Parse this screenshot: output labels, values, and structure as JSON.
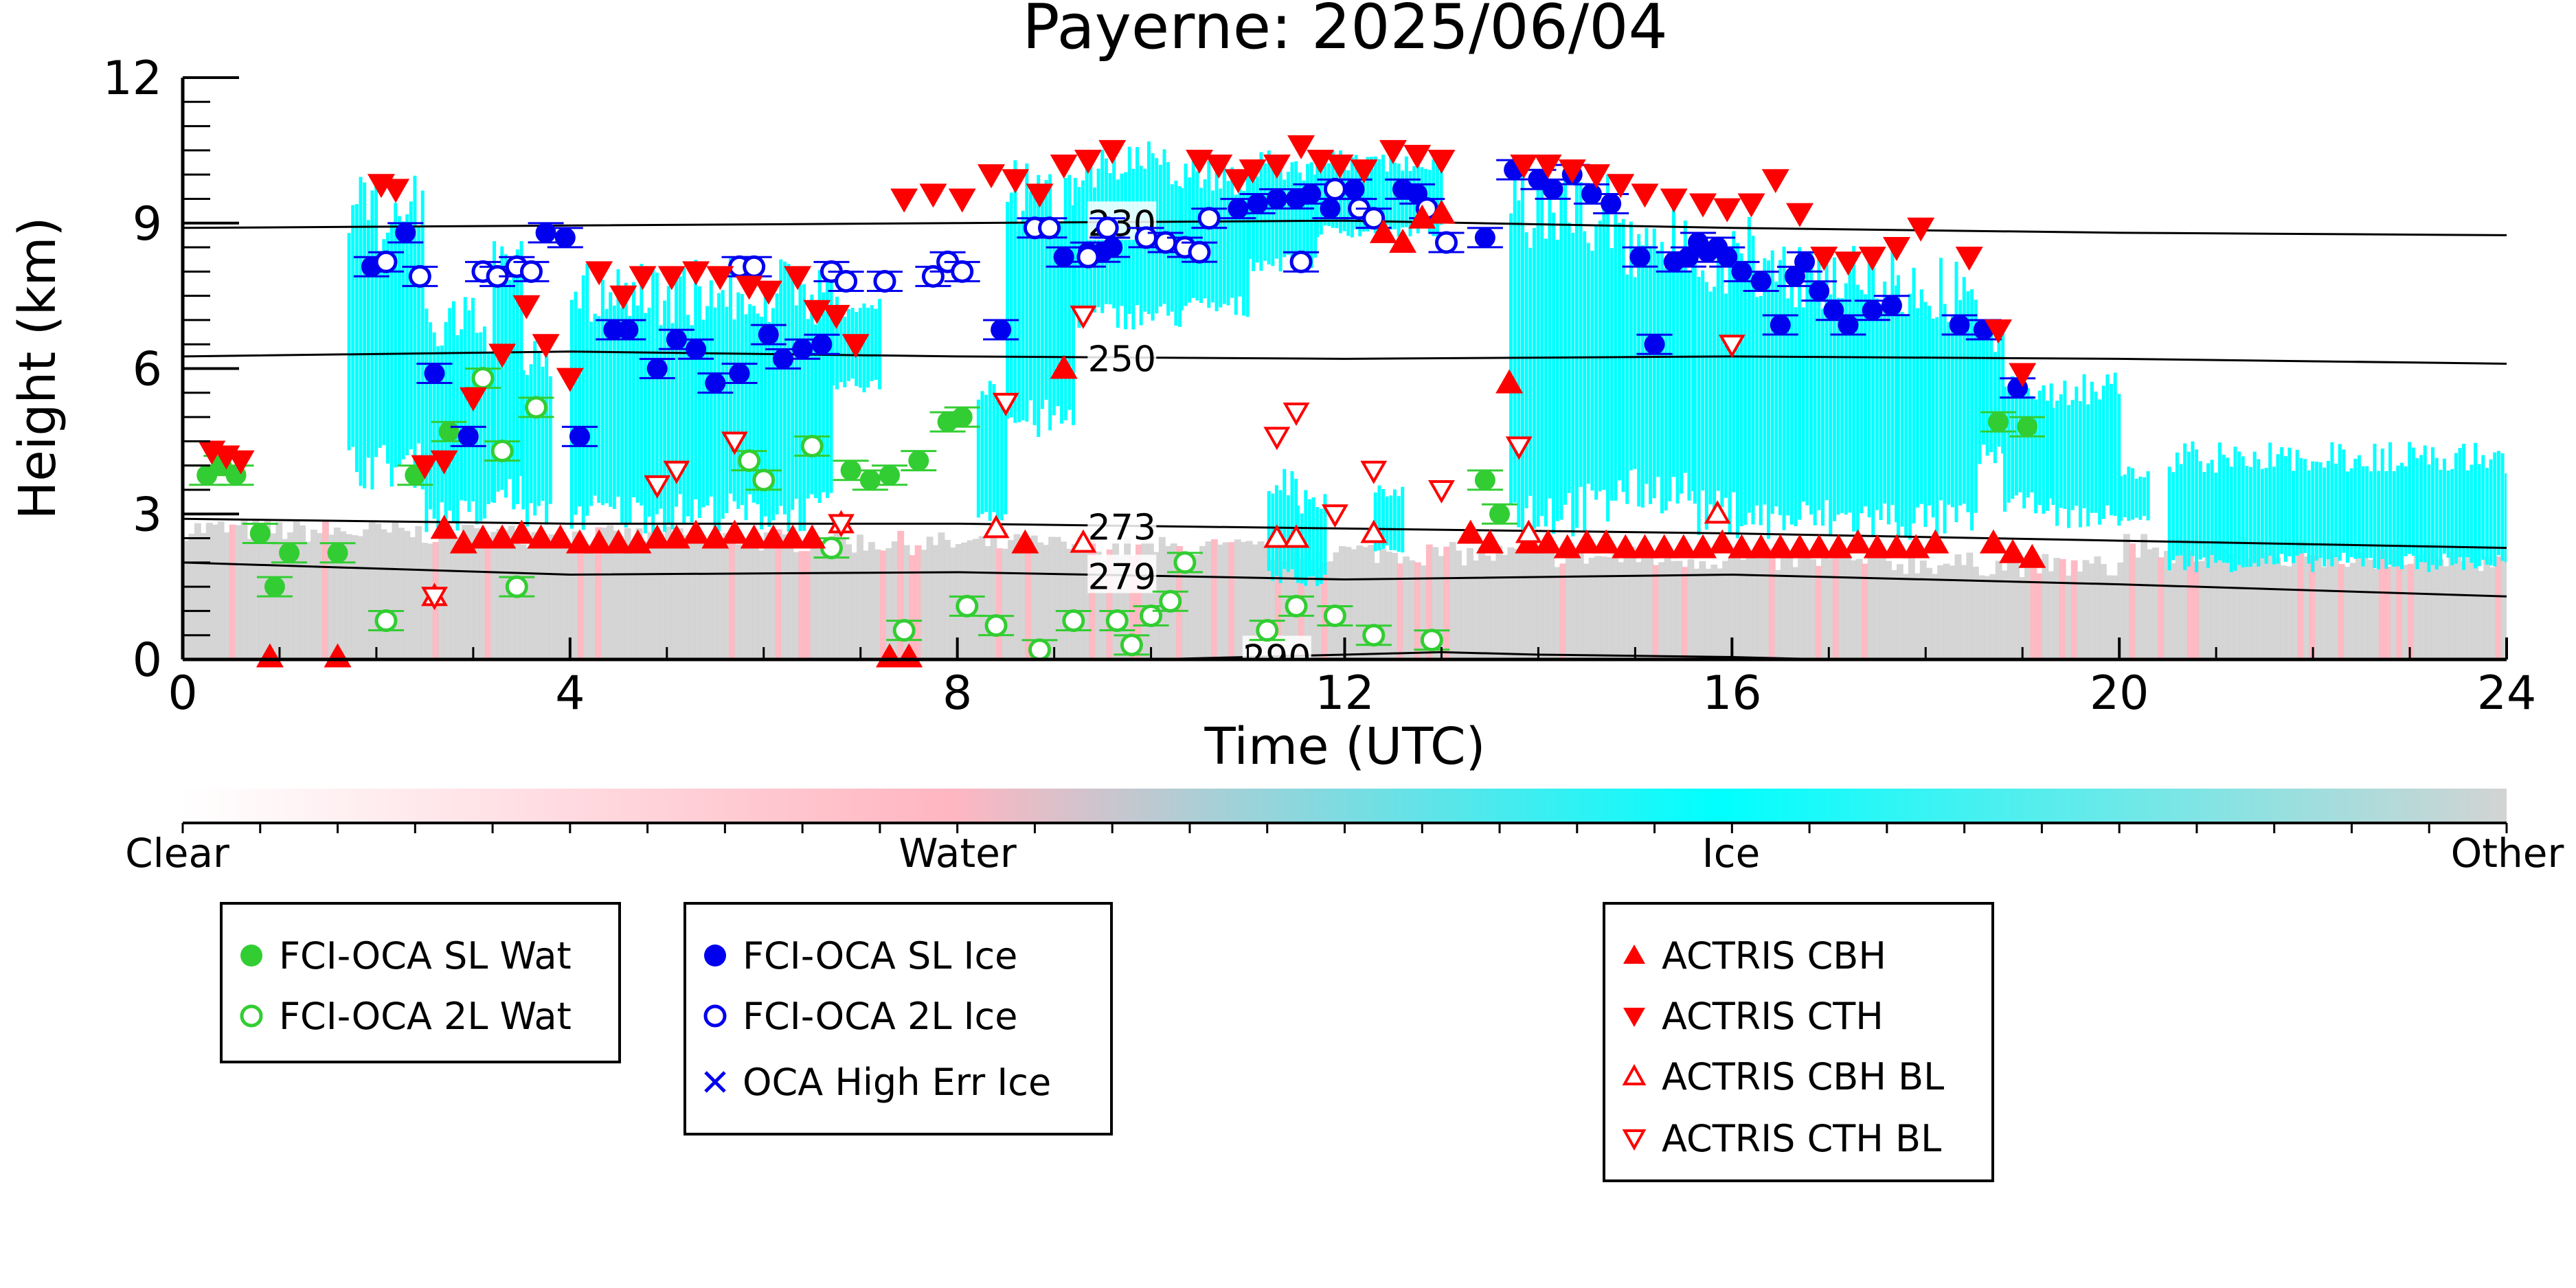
{
  "chart_data": {
    "type": "scatter",
    "title": "Payerne: 2025/06/04",
    "xlabel": "Time (UTC)",
    "ylabel": "Height (km)",
    "xlim": [
      0,
      24
    ],
    "ylim": [
      0,
      12
    ],
    "x_ticks": [
      "0",
      "4",
      "8",
      "12",
      "16",
      "20",
      "24"
    ],
    "y_ticks": [
      "0",
      "3",
      "6",
      "9",
      "12"
    ],
    "colorbar": {
      "labels": [
        "Clear",
        "Water",
        "Ice",
        "Other"
      ],
      "colors": [
        "#ffffff",
        "#ffb6c1",
        "#00ffff",
        "#d3d3d3"
      ]
    },
    "isotherms": [
      {
        "label": "230",
        "x": [
          0,
          4,
          8,
          12,
          16,
          20,
          24
        ],
        "y": [
          8.9,
          8.95,
          9.0,
          9.05,
          8.9,
          8.8,
          8.75
        ]
      },
      {
        "label": "250",
        "x": [
          0,
          4,
          8,
          12,
          16,
          20,
          24
        ],
        "y": [
          6.25,
          6.35,
          6.25,
          6.2,
          6.25,
          6.2,
          6.1
        ]
      },
      {
        "label": "273",
        "x": [
          0,
          4,
          8,
          12,
          16,
          20,
          24
        ],
        "y": [
          2.9,
          2.8,
          2.8,
          2.7,
          2.6,
          2.45,
          2.3
        ]
      },
      {
        "label": "279",
        "x": [
          0,
          4,
          8,
          12,
          16,
          20,
          24
        ],
        "y": [
          2.0,
          1.75,
          1.8,
          1.65,
          1.75,
          1.55,
          1.3
        ]
      },
      {
        "label": "290",
        "x": [
          10,
          11,
          12,
          13,
          14,
          16,
          17
        ],
        "y": [
          0.0,
          0.05,
          0.1,
          0.15,
          0.1,
          0.05,
          0.0
        ]
      }
    ],
    "series": [
      {
        "name": "FCI-OCA SL Wat",
        "color": "#32cd32",
        "marker": "filled-circle",
        "x": [
          0.25,
          0.4,
          0.55,
          0.8,
          0.95,
          1.1,
          1.6,
          2.4,
          2.75,
          6.9,
          7.1,
          7.3,
          7.6,
          7.9,
          8.05,
          13.45,
          13.6,
          18.75,
          19.05
        ],
        "y": [
          3.8,
          4.0,
          3.8,
          2.6,
          1.5,
          2.2,
          2.2,
          3.8,
          4.7,
          3.9,
          3.7,
          3.8,
          4.1,
          4.9,
          5.0,
          3.7,
          3.0,
          4.9,
          4.8
        ]
      },
      {
        "name": "FCI-OCA 2L Wat",
        "color": "#32cd32",
        "marker": "open-circle",
        "x": [
          2.1,
          3.1,
          3.3,
          3.45,
          3.65,
          5.85,
          6.0,
          6.5,
          6.7,
          7.45,
          8.1,
          8.4,
          8.85,
          9.2,
          9.65,
          9.8,
          10.0,
          10.2,
          10.35,
          11.2,
          11.5,
          11.9,
          12.3,
          12.9
        ],
        "y": [
          0.8,
          5.8,
          4.3,
          1.5,
          5.2,
          4.1,
          3.7,
          4.4,
          2.3,
          0.6,
          1.1,
          0.7,
          0.2,
          0.8,
          0.8,
          0.3,
          0.9,
          1.2,
          2.0,
          0.6,
          1.1,
          0.9,
          0.5,
          0.4
        ]
      },
      {
        "name": "FCI-OCA SL Ice",
        "color": "#0000ee",
        "marker": "filled-circle",
        "x": [
          1.95,
          2.3,
          2.6,
          2.95,
          3.75,
          3.95,
          4.1,
          4.45,
          4.6,
          4.9,
          5.1,
          5.3,
          5.5,
          5.75,
          6.05,
          6.2,
          6.4,
          6.6,
          8.45,
          9.1,
          9.35,
          9.5,
          9.6,
          10.9,
          11.1,
          11.3,
          11.5,
          11.65,
          11.85,
          12.1,
          12.6,
          12.75,
          13.45,
          13.75,
          14.0,
          14.15,
          14.35,
          14.55,
          14.75,
          15.05,
          15.2,
          15.4,
          15.55,
          15.65,
          15.75,
          15.85,
          15.95,
          16.1,
          16.3,
          16.5,
          16.65,
          16.75,
          16.9,
          17.05,
          17.2,
          17.45,
          17.65,
          18.35,
          18.6,
          18.95
        ],
        "y": [
          8.1,
          8.8,
          5.9,
          4.6,
          8.8,
          8.7,
          4.6,
          6.8,
          6.8,
          6.0,
          6.6,
          6.4,
          5.7,
          5.9,
          6.7,
          6.2,
          6.4,
          6.5,
          6.8,
          8.3,
          8.4,
          8.4,
          8.5,
          9.3,
          9.4,
          9.5,
          9.5,
          9.6,
          9.3,
          9.7,
          9.7,
          9.6,
          8.7,
          10.1,
          9.9,
          9.7,
          10.0,
          9.6,
          9.4,
          8.3,
          6.5,
          8.2,
          8.3,
          8.6,
          8.4,
          8.5,
          8.3,
          8.0,
          7.8,
          6.9,
          7.9,
          8.2,
          7.6,
          7.2,
          6.9,
          7.2,
          7.3,
          6.9,
          6.8,
          5.6
        ]
      },
      {
        "name": "FCI-OCA 2L Ice",
        "color": "#0000ee",
        "marker": "open-circle",
        "x": [
          2.1,
          2.45,
          3.1,
          3.25,
          3.45,
          3.6,
          5.75,
          5.9,
          6.7,
          6.85,
          7.25,
          7.75,
          7.9,
          8.05,
          8.8,
          8.95,
          9.35,
          9.55,
          9.95,
          10.15,
          10.35,
          10.5,
          10.6,
          11.55,
          11.9,
          12.15,
          12.3,
          12.85,
          13.05
        ],
        "y": [
          8.2,
          7.9,
          8.0,
          7.9,
          8.1,
          8.0,
          8.1,
          8.1,
          8.0,
          7.8,
          7.8,
          7.9,
          8.2,
          8.0,
          8.9,
          8.9,
          8.3,
          8.9,
          8.7,
          8.6,
          8.5,
          8.4,
          9.1,
          8.2,
          9.7,
          9.3,
          9.1,
          9.3,
          8.6
        ]
      },
      {
        "name": "OCA High Err Ice",
        "color": "#0000ee",
        "marker": "cross",
        "x": [],
        "y": []
      },
      {
        "name": "ACTRIS CBH",
        "color": "#ff0000",
        "marker": "triangle-up",
        "x": [
          0.9,
          1.6,
          2.7,
          2.9,
          3.1,
          3.3,
          3.5,
          3.7,
          3.9,
          4.1,
          4.3,
          4.5,
          4.7,
          4.9,
          5.1,
          5.3,
          5.5,
          5.7,
          5.9,
          6.1,
          6.3,
          6.5,
          7.3,
          7.5,
          8.7,
          9.1,
          12.4,
          12.6,
          12.8,
          13.0,
          13.3,
          13.5,
          13.7,
          13.9,
          14.1,
          14.3,
          14.5,
          14.7,
          14.9,
          15.1,
          15.3,
          15.5,
          15.7,
          15.9,
          16.1,
          16.3,
          16.5,
          16.7,
          16.9,
          17.1,
          17.3,
          17.5,
          17.7,
          17.9,
          18.1,
          18.7,
          18.9,
          19.1
        ],
        "y": [
          0.05,
          0.05,
          2.7,
          2.4,
          2.5,
          2.5,
          2.6,
          2.5,
          2.5,
          2.4,
          2.4,
          2.4,
          2.4,
          2.5,
          2.5,
          2.6,
          2.5,
          2.6,
          2.5,
          2.5,
          2.5,
          2.5,
          0.05,
          0.05,
          2.4,
          6.0,
          8.8,
          8.6,
          9.1,
          9.2,
          2.6,
          2.4,
          5.7,
          2.4,
          2.4,
          2.3,
          2.4,
          2.4,
          2.3,
          2.3,
          2.3,
          2.3,
          2.3,
          2.4,
          2.3,
          2.3,
          2.3,
          2.3,
          2.3,
          2.3,
          2.4,
          2.3,
          2.3,
          2.3,
          2.4,
          2.4,
          2.2,
          2.1
        ]
      },
      {
        "name": "ACTRIS CTH",
        "color": "#ff0000",
        "marker": "triangle-down",
        "x": [
          0.3,
          0.45,
          0.6,
          2.05,
          2.2,
          2.5,
          2.7,
          3.0,
          3.3,
          3.55,
          3.75,
          4.0,
          4.3,
          4.55,
          4.75,
          5.05,
          5.3,
          5.55,
          5.85,
          6.05,
          6.35,
          6.55,
          6.75,
          6.95,
          7.45,
          7.75,
          8.05,
          8.35,
          8.6,
          8.85,
          9.1,
          9.35,
          9.6,
          10.5,
          10.7,
          10.9,
          11.05,
          11.3,
          11.55,
          11.75,
          11.95,
          12.2,
          12.5,
          12.75,
          13.0,
          13.85,
          14.1,
          14.35,
          14.6,
          14.85,
          15.1,
          15.4,
          15.7,
          15.95,
          16.2,
          16.45,
          16.7,
          16.95,
          17.2,
          17.45,
          17.7,
          17.95,
          18.45,
          18.75,
          19.0
        ],
        "y": [
          4.3,
          4.2,
          4.1,
          9.8,
          9.7,
          4.0,
          4.1,
          5.4,
          6.3,
          7.3,
          6.5,
          5.8,
          8.0,
          7.5,
          7.9,
          7.9,
          8.0,
          7.9,
          7.7,
          7.6,
          7.9,
          7.2,
          7.1,
          6.5,
          9.5,
          9.6,
          9.5,
          10.0,
          9.9,
          9.6,
          10.2,
          10.3,
          10.5,
          10.3,
          10.2,
          9.9,
          10.1,
          10.2,
          10.6,
          10.3,
          10.2,
          10.1,
          10.5,
          10.4,
          10.3,
          10.2,
          10.2,
          10.1,
          10.0,
          9.8,
          9.6,
          9.5,
          9.4,
          9.3,
          9.4,
          9.9,
          9.2,
          8.3,
          8.2,
          8.3,
          8.5,
          8.9,
          8.3,
          6.8,
          5.9
        ]
      },
      {
        "name": "ACTRIS CBH BL",
        "color": "#ff0000",
        "marker": "open-triangle-up",
        "x": [
          2.6,
          6.8,
          8.4,
          9.3,
          11.3,
          11.5,
          12.3,
          13.9,
          15.85
        ],
        "y": [
          1.3,
          2.8,
          2.7,
          2.4,
          2.5,
          2.5,
          2.6,
          2.6,
          3.0
        ]
      },
      {
        "name": "ACTRIS CTH BL",
        "color": "#ff0000",
        "marker": "open-triangle-down",
        "x": [
          2.6,
          4.9,
          5.1,
          5.7,
          6.8,
          8.5,
          9.3,
          11.3,
          11.5,
          11.9,
          12.3,
          13.0,
          13.8,
          16.0
        ],
        "y": [
          1.3,
          3.6,
          3.9,
          4.5,
          2.8,
          5.3,
          7.1,
          4.6,
          5.1,
          3.0,
          3.9,
          3.5,
          4.4,
          6.5
        ]
      }
    ]
  },
  "legends": [
    {
      "entries": [
        {
          "marker": "filled-circle",
          "color": "#32cd32",
          "label": "FCI-OCA SL Wat"
        },
        {
          "marker": "open-circle",
          "color": "#32cd32",
          "label": "FCI-OCA 2L Wat"
        }
      ]
    },
    {
      "entries": [
        {
          "marker": "filled-circle",
          "color": "#0000ee",
          "label": "FCI-OCA SL Ice"
        },
        {
          "marker": "open-circle",
          "color": "#0000ee",
          "label": "FCI-OCA 2L Ice"
        },
        {
          "marker": "cross",
          "color": "#0000ee",
          "label": "OCA High Err Ice"
        }
      ]
    },
    {
      "entries": [
        {
          "marker": "triangle-up",
          "color": "#ff0000",
          "label": "ACTRIS CBH"
        },
        {
          "marker": "triangle-down",
          "color": "#ff0000",
          "label": "ACTRIS CTH"
        },
        {
          "marker": "open-triangle-up",
          "color": "#ff0000",
          "label": "ACTRIS CBH BL"
        },
        {
          "marker": "open-triangle-down",
          "color": "#ff0000",
          "label": "ACTRIS CTH BL"
        }
      ]
    }
  ]
}
